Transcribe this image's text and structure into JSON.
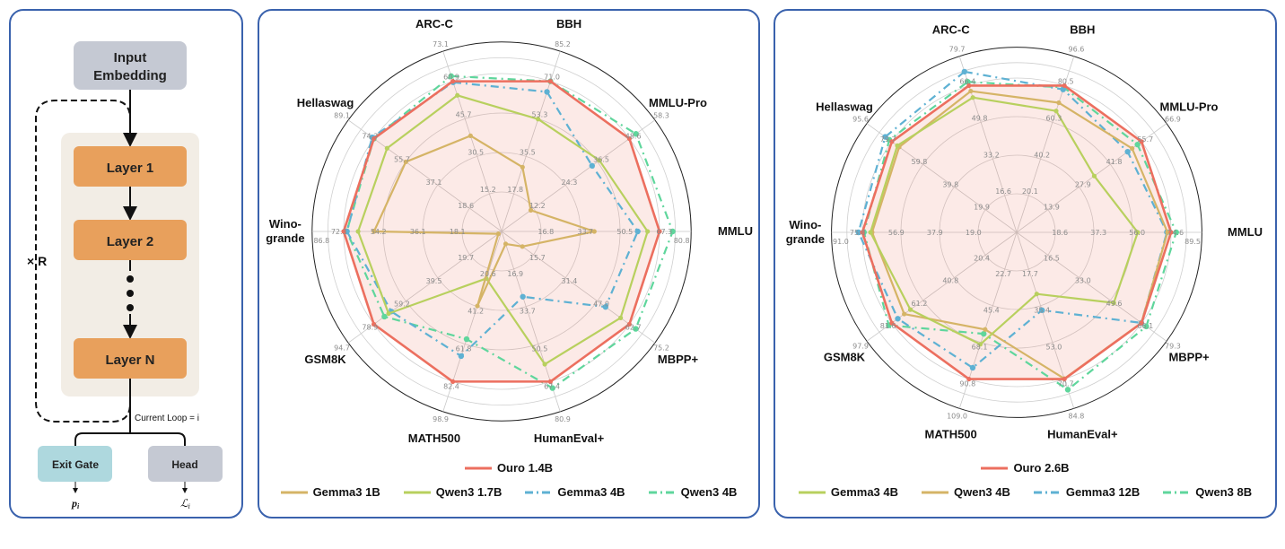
{
  "diagram": {
    "input_embedding": [
      "Input",
      "Embedding"
    ],
    "layers": [
      "Layer 1",
      "Layer 2",
      "Layer N"
    ],
    "repeat_label": "× R",
    "current_loop_label": "Current Loop = i",
    "exit_gate": "Exit Gate",
    "head": "Head",
    "exit_output": "p",
    "exit_output_sub": "i",
    "head_output": "ℒ",
    "head_output_sub": "i",
    "colors": {
      "embedding": "#c5c9d3",
      "layer": "#e8a05c",
      "stack_bg": "#f2ede5",
      "exit_gate": "#aed8de",
      "head": "#c5c9d3"
    }
  },
  "chart_data": [
    {
      "type": "radar",
      "legend_placement": "bottom",
      "grid": true,
      "axes": [
        {
          "name": "ARC-C",
          "lines": [
            "ARC-C"
          ],
          "ticks": [
            15.2,
            30.5,
            45.7,
            60.9,
            73.1
          ]
        },
        {
          "name": "BBH",
          "lines": [
            "BBH"
          ],
          "ticks": [
            17.8,
            35.5,
            53.3,
            71.0,
            85.2
          ]
        },
        {
          "name": "MMLU-Pro",
          "lines": [
            "MMLU-Pro"
          ],
          "ticks": [
            12.2,
            24.3,
            36.5,
            48.6,
            58.3
          ]
        },
        {
          "name": "MMLU",
          "lines": [
            "MMLU"
          ],
          "ticks": [
            16.8,
            33.7,
            50.5,
            67.3,
            80.8
          ]
        },
        {
          "name": "MBPP+",
          "lines": [
            "MBPP+"
          ],
          "ticks": [
            15.7,
            31.4,
            47.0,
            62.7,
            75.2
          ]
        },
        {
          "name": "HumanEval+",
          "lines": [
            "HumanEval+"
          ],
          "ticks": [
            16.9,
            33.7,
            50.5,
            67.4,
            80.9
          ]
        },
        {
          "name": "MATH500",
          "lines": [
            "MATH500"
          ],
          "ticks": [
            20.6,
            41.2,
            61.8,
            82.4,
            98.9
          ]
        },
        {
          "name": "GSM8K",
          "lines": [
            "GSM8K"
          ],
          "ticks": [
            19.7,
            39.5,
            59.2,
            78.9,
            94.7
          ]
        },
        {
          "name": "Wino-grande",
          "lines": [
            "Wino-",
            "grande"
          ],
          "ticks": [
            18.1,
            36.1,
            54.2,
            72.3,
            86.8
          ]
        },
        {
          "name": "Hellaswag",
          "lines": [
            "Hellaswag"
          ],
          "ticks": [
            18.6,
            37.1,
            55.7,
            74.3,
            89.1
          ]
        }
      ],
      "series": [
        {
          "name": "Ouro 1.4B",
          "color": "#ec6f5f",
          "style": "solid",
          "fill": true,
          "values": [
            60.9,
            71.0,
            48.6,
            67.3,
            62.7,
            67.4,
            82.4,
            78.9,
            72.3,
            74.3
          ]
        },
        {
          "name": "Gemma3 1B",
          "color": "#d5b466",
          "style": "solid",
          "values": [
            38.8,
            30.4,
            11.1,
            39.5,
            10.2,
            5.6,
            40.9,
            2.0,
            58.4,
            55.7
          ]
        },
        {
          "name": "Qwen3 1.7B",
          "color": "#b8d05e",
          "style": "solid",
          "values": [
            55.2,
            53.1,
            37.2,
            62.2,
            58.4,
            59.6,
            25.8,
            69.8,
            65.7,
            66.6
          ]
        },
        {
          "name": "Gemma3 4B",
          "color": "#5eb1d3",
          "style": "dashdot",
          "values": [
            60.5,
            66.0,
            34.4,
            58.0,
            51.0,
            29.3,
            68.4,
            68.1,
            70.8,
            75.3
          ]
        },
        {
          "name": "Qwen3 4B",
          "color": "#5fd69c",
          "style": "dashdot",
          "values": [
            63.0,
            71.0,
            51.1,
            72.9,
            65.8,
            70.3,
            59.1,
            72.4,
            70.9,
            74.3
          ]
        }
      ]
    },
    {
      "type": "radar",
      "legend_placement": "bottom",
      "grid": true,
      "axes": [
        {
          "name": "ARC-C",
          "lines": [
            "ARC-C"
          ],
          "ticks": [
            16.6,
            33.2,
            49.8,
            66.4,
            79.7
          ]
        },
        {
          "name": "BBH",
          "lines": [
            "BBH"
          ],
          "ticks": [
            20.1,
            40.2,
            60.3,
            80.5,
            96.6
          ]
        },
        {
          "name": "MMLU-Pro",
          "lines": [
            "MMLU-Pro"
          ],
          "ticks": [
            13.9,
            27.9,
            41.8,
            55.7,
            66.9
          ]
        },
        {
          "name": "MMLU",
          "lines": [
            "MMLU"
          ],
          "ticks": [
            18.6,
            37.3,
            56.0,
            74.6,
            89.5
          ]
        },
        {
          "name": "MBPP+",
          "lines": [
            "MBPP+"
          ],
          "ticks": [
            16.5,
            33.0,
            49.6,
            66.1,
            79.3
          ]
        },
        {
          "name": "HumanEval+",
          "lines": [
            "HumanEval+"
          ],
          "ticks": [
            17.7,
            35.4,
            53.0,
            70.7,
            84.8
          ]
        },
        {
          "name": "MATH500",
          "lines": [
            "MATH500"
          ],
          "ticks": [
            22.7,
            45.4,
            68.1,
            90.8,
            109.0
          ]
        },
        {
          "name": "GSM8K",
          "lines": [
            "GSM8K"
          ],
          "ticks": [
            20.4,
            40.8,
            61.2,
            81.6,
            97.9
          ]
        },
        {
          "name": "Wino-grande",
          "lines": [
            "Wino-",
            "grande"
          ],
          "ticks": [
            19.0,
            37.9,
            56.9,
            75.8,
            91.0
          ]
        },
        {
          "name": "Hellaswag",
          "lines": [
            "Hellaswag"
          ],
          "ticks": [
            19.9,
            39.8,
            59.8,
            79.7,
            95.6
          ]
        }
      ],
      "series": [
        {
          "name": "Ouro 2.6B",
          "color": "#ec6f5f",
          "style": "solid",
          "fill": true,
          "values": [
            66.4,
            80.5,
            55.7,
            74.6,
            66.1,
            70.7,
            90.8,
            81.6,
            75.8,
            79.7
          ]
        },
        {
          "name": "Gemma3 4B",
          "color": "#b8d05e",
          "style": "solid",
          "values": [
            61.0,
            66.6,
            34.6,
            58.5,
            51.4,
            29.7,
            69.3,
            69.5,
            71.8,
            76.2
          ]
        },
        {
          "name": "Qwen3 4B",
          "color": "#d5b466",
          "style": "solid",
          "values": [
            63.9,
            71.1,
            51.5,
            72.9,
            66.0,
            70.5,
            60.1,
            73.5,
            71.0,
            75.0
          ]
        },
        {
          "name": "Gemma3 12B",
          "color": "#5eb1d3",
          "style": "dashdot",
          "values": [
            72.7,
            78.4,
            49.5,
            72.6,
            66.0,
            37.5,
            83.8,
            77.7,
            77.7,
            83.9
          ]
        },
        {
          "name": "Qwen3 8B",
          "color": "#5fd69c",
          "style": "dashdot",
          "values": [
            68.1,
            79.5,
            53.9,
            77.1,
            68.6,
            75.8,
            62.8,
            83.6,
            75.0,
            81.3
          ]
        }
      ]
    }
  ]
}
